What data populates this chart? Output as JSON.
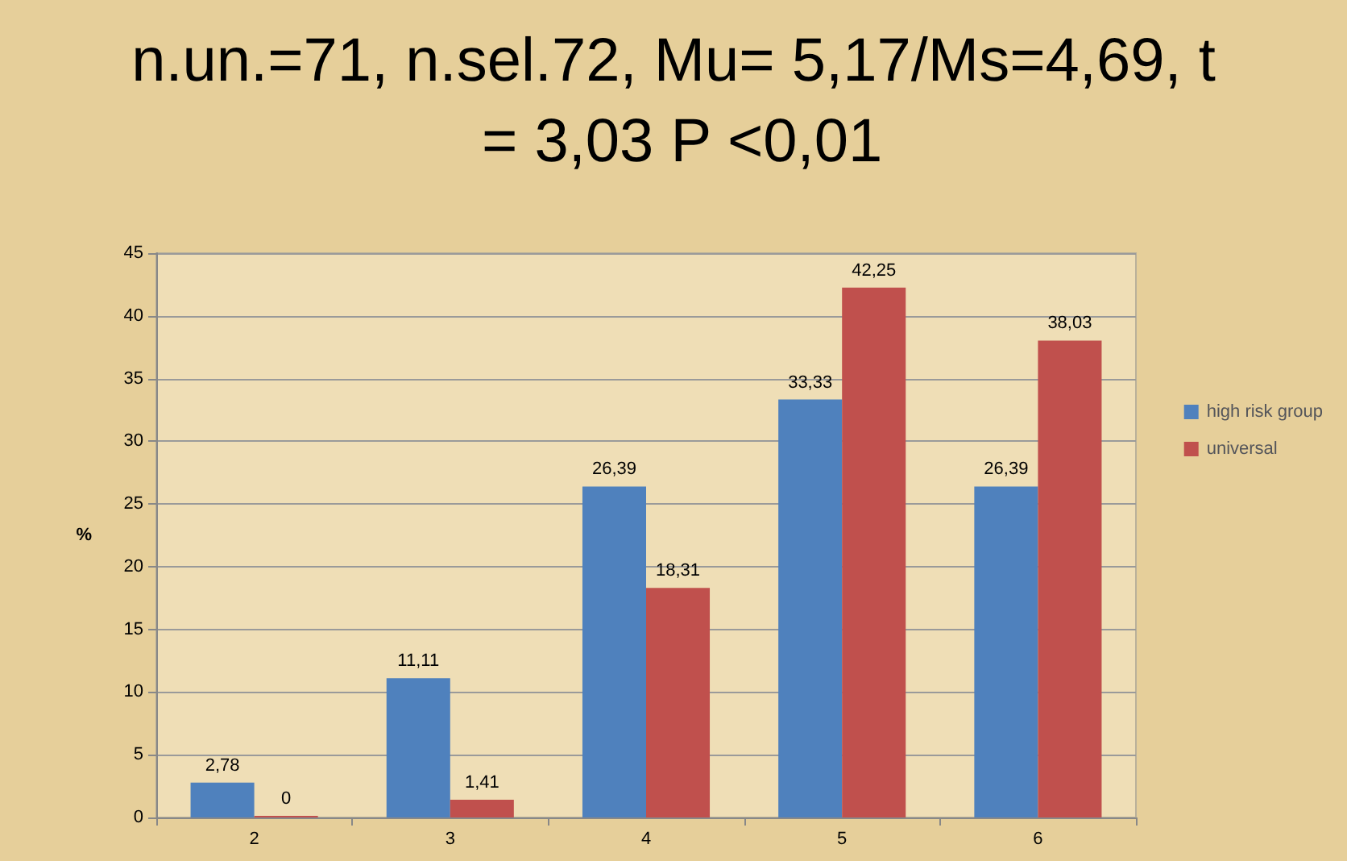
{
  "chart_data": {
    "type": "bar",
    "title": "n.un.=71, n.sel.72, Mu= 5,17/Ms=4,69, t = 3,03 P <0,01",
    "ylabel": "%",
    "categories": [
      "2",
      "3",
      "4",
      "5",
      "6"
    ],
    "series": [
      {
        "name": "high risk group",
        "color": "#4f81bd",
        "values": [
          2.78,
          11.11,
          26.39,
          33.33,
          26.39
        ],
        "value_labels": [
          "2,78",
          "11,11",
          "26,39",
          "33,33",
          "26,39"
        ]
      },
      {
        "name": "universal",
        "color": "#c0504d",
        "values": [
          0,
          1.41,
          18.31,
          42.25,
          38.03
        ],
        "value_labels": [
          "0",
          "1,41",
          "18,31",
          "42,25",
          "38,03"
        ]
      }
    ],
    "ylim": [
      0,
      45
    ],
    "yticks": [
      0,
      5,
      10,
      15,
      20,
      25,
      30,
      35,
      40,
      45
    ],
    "grid": "y",
    "legend": "right"
  }
}
